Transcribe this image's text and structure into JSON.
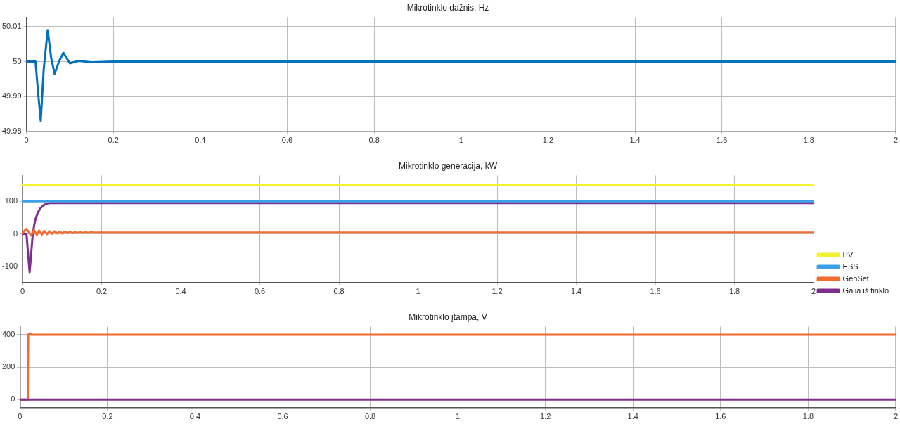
{
  "chart_data": [
    {
      "type": "line",
      "title": "Mikrotinklo dažnis, Hz",
      "xlim": [
        0,
        2
      ],
      "xticks": [
        0,
        0.2,
        0.4,
        0.6,
        0.8,
        1,
        1.2,
        1.4,
        1.6,
        1.8,
        2
      ],
      "ylim": [
        49.98,
        50.0127
      ],
      "yticks": [
        49.98,
        49.99,
        50,
        50.01
      ],
      "grid": true,
      "legend": false,
      "marker": "none",
      "line_style": "solid",
      "series": [
        {
          "color": "#0072bd",
          "x": [
            0,
            0.021,
            0.027,
            0.033,
            0.04,
            0.049,
            0.057,
            0.065,
            0.075,
            0.085,
            0.1,
            0.12,
            0.15,
            0.2,
            0.25,
            2
          ],
          "values": [
            50,
            50,
            49.991,
            49.983,
            49.998,
            50.009,
            50.001,
            49.9965,
            50,
            50.0025,
            49.9995,
            50.0002,
            49.9998,
            50,
            50,
            50
          ]
        }
      ]
    },
    {
      "type": "line",
      "title": "Mikrotinklo generacija, kW",
      "xlim": [
        0,
        2
      ],
      "xticks": [
        0,
        0.2,
        0.4,
        0.6,
        0.8,
        1,
        1.2,
        1.4,
        1.6,
        1.8,
        2
      ],
      "ylim": [
        -150,
        180
      ],
      "yticks": [
        -100,
        0,
        100
      ],
      "grid": true,
      "legend": "bottom right",
      "marker": "none",
      "line_style": "solid",
      "series": [
        {
          "name": "PV",
          "color": "#f2f230",
          "x": [
            0,
            2
          ],
          "values": [
            150,
            150
          ]
        },
        {
          "name": "ESS",
          "color": "#3aa0e8",
          "x": [
            0,
            2
          ],
          "values": [
            100,
            100
          ]
        },
        {
          "name": "GenSet",
          "color": "#f26b30",
          "x": [
            0,
            0.005,
            0.01,
            0.016,
            0.022,
            0.029,
            0.036,
            0.042,
            0.049,
            0.055,
            0.062,
            0.068,
            0.075,
            0.081,
            0.088,
            0.094,
            0.101,
            0.107,
            0.114,
            0.12,
            0.127,
            0.133,
            0.14,
            0.146,
            0.153,
            0.16,
            0.166,
            0.173,
            0.18,
            2
          ],
          "values": [
            0,
            10,
            15,
            5,
            -5,
            12,
            -3,
            10,
            -2,
            9,
            -1,
            8,
            0,
            8,
            1,
            7,
            1,
            7,
            2,
            6,
            2,
            6,
            3,
            5,
            3,
            5,
            3,
            5,
            4,
            4
          ]
        },
        {
          "name": "Galia iš tinklo",
          "color": "#7e2f8e",
          "x": [
            0,
            0.01,
            0.014,
            0.018,
            0.022,
            0.026,
            0.03,
            0.034,
            0.04,
            0.046,
            0.052,
            0.059,
            0.065,
            0.07,
            2
          ],
          "values": [
            0,
            0,
            -60,
            -118,
            -60,
            0,
            30,
            50,
            68,
            80,
            87,
            92,
            94,
            95,
            95
          ]
        }
      ]
    },
    {
      "type": "line",
      "title": "Mikrotinklo įtampa, V",
      "xlim": [
        0,
        2
      ],
      "xticks": [
        0,
        0.2,
        0.4,
        0.6,
        0.8,
        1,
        1.2,
        1.4,
        1.6,
        1.8,
        2
      ],
      "ylim": [
        -50,
        450
      ],
      "yticks": [
        0,
        200,
        400
      ],
      "grid": true,
      "legend": false,
      "marker": "none",
      "line_style": "solid",
      "series": [
        {
          "color": "#7e2f8e",
          "x": [
            0,
            2
          ],
          "values": [
            0,
            0
          ]
        },
        {
          "color": "#f26b30",
          "x": [
            0,
            0.018,
            0.019,
            0.022,
            0.026,
            2
          ],
          "values": [
            0,
            0,
            400,
            408,
            400,
            400
          ]
        }
      ]
    }
  ]
}
